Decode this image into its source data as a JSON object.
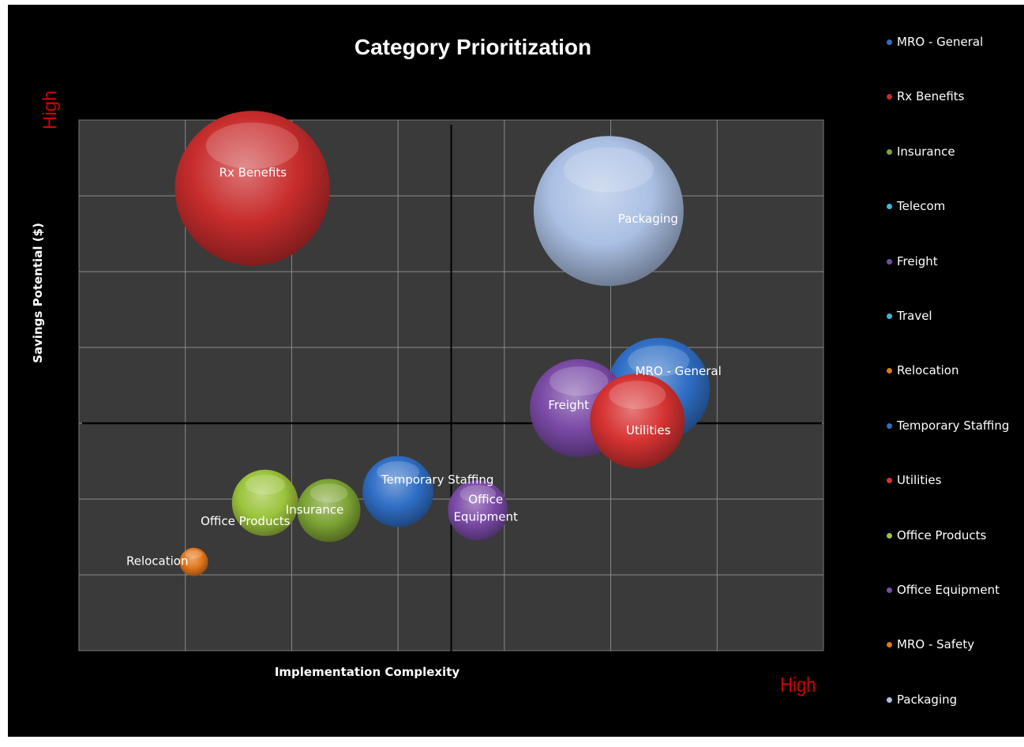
{
  "chart_data": {
    "type": "bubble",
    "title": "Category Prioritization",
    "xlabel": "Implementation Complexity",
    "ylabel": "Savings Potential ($)",
    "x_axis_marker": "High",
    "y_axis_marker": "High",
    "xlim": [
      0,
      7
    ],
    "ylim": [
      0,
      7
    ],
    "quadrant_lines": {
      "x": 3.5,
      "y": 3
    },
    "grid": true,
    "legend_position": "right",
    "colors": {
      "blue": "#2f6ec5",
      "red": "#c82c2c",
      "green": "#7ea434",
      "lime": "#9cc43c",
      "purple": "#7a4aa6",
      "orange": "#e2771c",
      "lightblue": "#aac0e4",
      "cyan": "#3ab8d6"
    },
    "series": [
      {
        "name": "MRO - General",
        "color": "#2f6ec5",
        "x": 5.45,
        "y": 3.45,
        "size": 65,
        "label": "MRO - General"
      },
      {
        "name": "Rx Benefits",
        "color": "#c82c2c",
        "x": 1.63,
        "y": 6.1,
        "size": 98,
        "label": "Rx Benefits"
      },
      {
        "name": "Insurance",
        "color": "#7ea434",
        "x": 2.35,
        "y": 1.85,
        "size": 40,
        "label": "Insurance"
      },
      {
        "name": "Telecom",
        "color": "#3ab8d6",
        "x": null,
        "y": null,
        "size": null,
        "label": ""
      },
      {
        "name": "Freight",
        "color": "#7a4aa6",
        "x": 4.7,
        "y": 3.2,
        "size": 62,
        "label": "Freight"
      },
      {
        "name": "Travel",
        "color": "#3ab8d6",
        "x": null,
        "y": null,
        "size": null,
        "label": ""
      },
      {
        "name": "Relocation",
        "color": "#e2771c",
        "x": 1.08,
        "y": 1.17,
        "size": 18,
        "label": "Relocation"
      },
      {
        "name": "Temporary Staffing",
        "color": "#2f6ec5",
        "x": 3.0,
        "y": 2.1,
        "size": 45,
        "label": "Temporary Staffing"
      },
      {
        "name": "Utilities",
        "color": "#d63232",
        "x": 5.25,
        "y": 3.03,
        "size": 60,
        "label": "Utilities"
      },
      {
        "name": "Office Products",
        "color": "#9cc43c",
        "x": 1.75,
        "y": 1.95,
        "size": 42,
        "label": "Office Products"
      },
      {
        "name": "Office Equipment",
        "color": "#7a4aa6",
        "x": 3.75,
        "y": 1.85,
        "size": 38,
        "label": "Office\nEquipment"
      },
      {
        "name": "MRO - Safety",
        "color": "#e2771c",
        "x": null,
        "y": null,
        "size": null,
        "label": ""
      },
      {
        "name": "Packaging",
        "color": "#aac0e4",
        "x": 4.98,
        "y": 5.8,
        "size": 95,
        "label": "Packaging"
      }
    ]
  }
}
